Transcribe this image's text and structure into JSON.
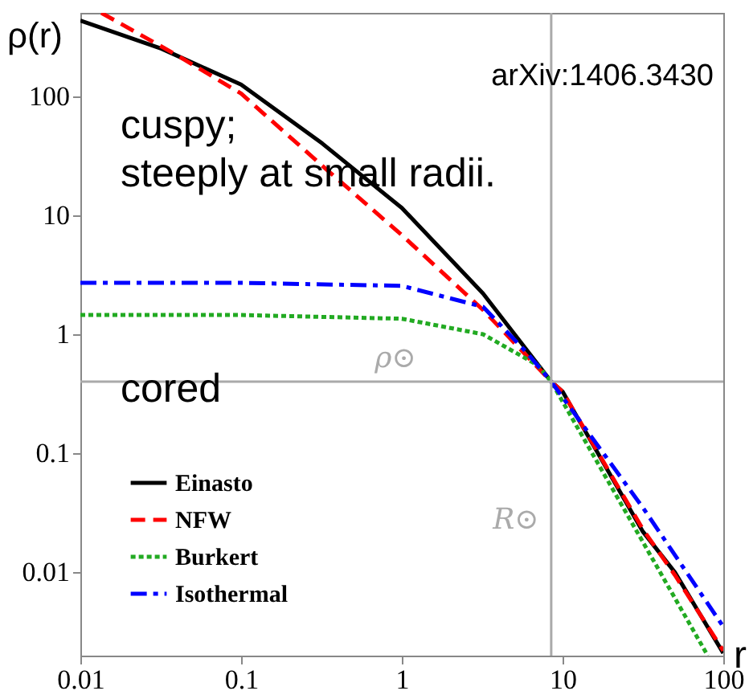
{
  "chart_data": {
    "type": "line",
    "xlabel": "r",
    "ylabel": "ρ(r)",
    "annotations": [
      "arXiv:1406.3430",
      "cuspy;\nsteeply at small radii.",
      "cored"
    ],
    "log": "xy",
    "xlim": [
      0.01,
      100
    ],
    "ylim": [
      0.002,
      500
    ],
    "xticks": [
      0.01,
      0.1,
      1,
      10,
      100
    ],
    "yticks": [
      0.01,
      0.1,
      1,
      10,
      100
    ],
    "grid": false,
    "legend": "bottom left",
    "marker": "none",
    "ref_lines": [
      {
        "axis": "y",
        "value": 0.4,
        "label": "ρ⊙",
        "color": "#aaaaaa"
      },
      {
        "axis": "x",
        "value": 8.5,
        "label": "R⊙",
        "color": "#aaaaaa"
      }
    ],
    "series": [
      {
        "name": "Einasto",
        "color": "#000000",
        "line_style": "solid",
        "x": [
          0.01,
          0.032,
          0.1,
          0.32,
          1,
          3.2,
          8.5,
          10,
          31.6,
          50,
          100
        ],
        "values": [
          430,
          250,
          125,
          40,
          11.5,
          2.2,
          0.4,
          0.33,
          0.022,
          0.01,
          0.0021
        ]
      },
      {
        "name": "NFW",
        "color": "#ff0000",
        "line_style": "dashed",
        "x": [
          0.0135,
          0.04,
          0.1,
          0.32,
          1,
          3.2,
          8.5,
          10,
          31.6,
          50,
          100
        ],
        "values": [
          500,
          220,
          105,
          26,
          6.8,
          1.6,
          0.4,
          0.33,
          0.023,
          0.0095,
          0.0022
        ]
      },
      {
        "name": "Burkert",
        "color": "#22aa22",
        "line_style": "dotted",
        "x": [
          0.01,
          0.1,
          1,
          3.2,
          7,
          8.5,
          31.6,
          80
        ],
        "values": [
          1.45,
          1.45,
          1.35,
          1.0,
          0.55,
          0.4,
          0.018,
          0.002
        ]
      },
      {
        "name": "Isothermal",
        "color": "#0000ff",
        "line_style": "dashdot",
        "x": [
          0.01,
          0.1,
          1,
          3.2,
          6,
          8.5,
          31.6,
          100
        ],
        "values": [
          2.7,
          2.7,
          2.55,
          1.7,
          0.7,
          0.4,
          0.035,
          0.0035
        ]
      }
    ]
  }
}
